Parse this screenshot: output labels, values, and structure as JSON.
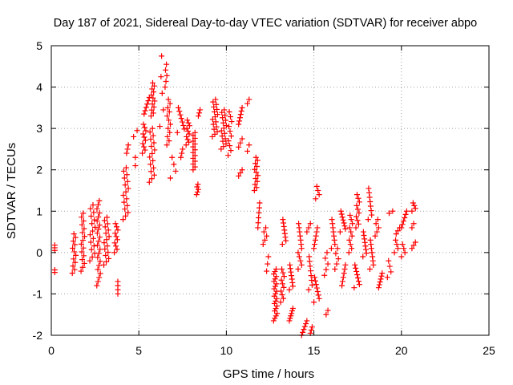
{
  "chart_data": {
    "type": "scatter",
    "title": "Day 187 of 2021, Sidereal Day-to-day VTEC variation (SDTVAR) for receiver abpo",
    "xlabel": "GPS time / hours",
    "ylabel": "SDTVAR / TECUs",
    "xlim": [
      0,
      25
    ],
    "ylim": [
      -2,
      5
    ],
    "xticks": [
      "0",
      "5",
      "10",
      "15",
      "20",
      "25"
    ],
    "yticks": [
      "-2",
      "-1",
      "0",
      "1",
      "2",
      "3",
      "4",
      "5"
    ],
    "grid": true,
    "marker": "+",
    "series_color": "#ff0000",
    "clusters": [
      {
        "x": 0.2,
        "x2": 0.2,
        "y1": 0.05,
        "y2": 0.18,
        "n": 3
      },
      {
        "x": 0.2,
        "x2": 0.2,
        "y1": -0.48,
        "y2": -0.42,
        "n": 2
      },
      {
        "x": 1.2,
        "x2": 1.4,
        "y1": -0.5,
        "y2": 0.45,
        "n": 12
      },
      {
        "x": 1.7,
        "x2": 1.9,
        "y1": -0.45,
        "y2": 0.95,
        "n": 16
      },
      {
        "x": 2.2,
        "x2": 2.5,
        "y1": -0.2,
        "y2": 1.15,
        "n": 16
      },
      {
        "x": 2.6,
        "x2": 2.8,
        "y1": -0.8,
        "y2": 1.25,
        "n": 22
      },
      {
        "x": 3.0,
        "x2": 3.3,
        "y1": -0.3,
        "y2": 0.85,
        "n": 16
      },
      {
        "x": 3.6,
        "x2": 3.8,
        "y1": 0.0,
        "y2": 0.7,
        "n": 10
      },
      {
        "x": 3.8,
        "x2": 3.8,
        "y1": -1.0,
        "y2": -0.7,
        "n": 4
      },
      {
        "x": 4.1,
        "x2": 4.4,
        "y1": 0.8,
        "y2": 2.05,
        "n": 16
      },
      {
        "x": 4.3,
        "x2": 4.4,
        "y1": 2.4,
        "y2": 2.6,
        "n": 3
      },
      {
        "x": 4.8,
        "x2": 4.8,
        "y1": 2.1,
        "y2": 2.3,
        "n": 2
      },
      {
        "x": 4.7,
        "x2": 4.9,
        "y1": 2.8,
        "y2": 2.95,
        "n": 2
      },
      {
        "x": 5.2,
        "x2": 5.4,
        "y1": 2.4,
        "y2": 3.1,
        "n": 10
      },
      {
        "x": 5.3,
        "x2": 5.6,
        "y1": 3.35,
        "y2": 3.75,
        "n": 6
      },
      {
        "x": 5.6,
        "x2": 5.9,
        "y1": 1.7,
        "y2": 3.0,
        "n": 16
      },
      {
        "x": 5.7,
        "x2": 5.9,
        "y1": 3.3,
        "y2": 4.1,
        "n": 12
      },
      {
        "x": 6.2,
        "x2": 6.4,
        "y1": 3.05,
        "y2": 4.25,
        "n": 4
      },
      {
        "x": 6.3,
        "x2": 6.3,
        "y1": 4.75,
        "y2": 4.75,
        "n": 1
      },
      {
        "x": 6.5,
        "x2": 6.6,
        "y1": 4.0,
        "y2": 4.55,
        "n": 5
      },
      {
        "x": 6.6,
        "x2": 6.8,
        "y1": 2.6,
        "y2": 3.7,
        "n": 12
      },
      {
        "x": 6.8,
        "x2": 7.1,
        "y1": 1.8,
        "y2": 2.3,
        "n": 4
      },
      {
        "x": 7.2,
        "x2": 7.6,
        "y1": 2.9,
        "y2": 3.5,
        "n": 8
      },
      {
        "x": 7.4,
        "x2": 7.5,
        "y1": 2.3,
        "y2": 2.5,
        "n": 3
      },
      {
        "x": 7.7,
        "x2": 7.9,
        "y1": 2.6,
        "y2": 3.2,
        "n": 10
      },
      {
        "x": 8.1,
        "x2": 8.3,
        "y1": 2.0,
        "y2": 2.9,
        "n": 14
      },
      {
        "x": 8.3,
        "x2": 8.4,
        "y1": 1.4,
        "y2": 1.65,
        "n": 5
      },
      {
        "x": 8.4,
        "x2": 8.5,
        "y1": 3.3,
        "y2": 3.45,
        "n": 3
      },
      {
        "x": 9.2,
        "x2": 9.5,
        "y1": 2.8,
        "y2": 3.7,
        "n": 16
      },
      {
        "x": 9.7,
        "x2": 10.0,
        "y1": 2.5,
        "y2": 3.45,
        "n": 16
      },
      {
        "x": 10.1,
        "x2": 10.3,
        "y1": 2.35,
        "y2": 3.4,
        "n": 10
      },
      {
        "x": 10.7,
        "x2": 10.9,
        "y1": 3.1,
        "y2": 3.5,
        "n": 6
      },
      {
        "x": 10.7,
        "x2": 10.9,
        "y1": 2.55,
        "y2": 2.75,
        "n": 3
      },
      {
        "x": 10.7,
        "x2": 10.9,
        "y1": 1.85,
        "y2": 2.0,
        "n": 3
      },
      {
        "x": 11.2,
        "x2": 11.3,
        "y1": 3.6,
        "y2": 3.7,
        "n": 2
      },
      {
        "x": 11.2,
        "x2": 11.3,
        "y1": 2.45,
        "y2": 2.6,
        "n": 2
      },
      {
        "x": 11.6,
        "x2": 11.8,
        "y1": 1.5,
        "y2": 2.3,
        "n": 12
      },
      {
        "x": 11.8,
        "x2": 11.9,
        "y1": 0.6,
        "y2": 1.2,
        "n": 6
      },
      {
        "x": 12.1,
        "x2": 12.3,
        "y1": 0.2,
        "y2": 0.6,
        "n": 5
      },
      {
        "x": 12.3,
        "x2": 12.4,
        "y1": -0.45,
        "y2": -0.1,
        "n": 3
      },
      {
        "x": 12.7,
        "x2": 12.9,
        "y1": -1.65,
        "y2": -0.4,
        "n": 22
      },
      {
        "x": 13.1,
        "x2": 13.3,
        "y1": -1.2,
        "y2": -0.4,
        "n": 10
      },
      {
        "x": 13.2,
        "x2": 13.4,
        "y1": 0.2,
        "y2": 0.8,
        "n": 8
      },
      {
        "x": 13.6,
        "x2": 13.8,
        "y1": -0.9,
        "y2": -0.3,
        "n": 8
      },
      {
        "x": 13.6,
        "x2": 13.8,
        "y1": -1.65,
        "y2": -1.35,
        "n": 6
      },
      {
        "x": 14.1,
        "x2": 14.3,
        "y1": 0.0,
        "y2": 0.7,
        "n": 8
      },
      {
        "x": 14.1,
        "x2": 14.3,
        "y1": -0.4,
        "y2": -0.1,
        "n": 4
      },
      {
        "x": 14.3,
        "x2": 14.6,
        "y1": -2.0,
        "y2": -1.65,
        "n": 6
      },
      {
        "x": 14.6,
        "x2": 14.8,
        "y1": 0.5,
        "y2": 0.7,
        "n": 3
      },
      {
        "x": 14.7,
        "x2": 14.9,
        "y1": -0.9,
        "y2": -0.1,
        "n": 8
      },
      {
        "x": 14.8,
        "x2": 14.9,
        "y1": -1.95,
        "y2": -1.8,
        "n": 3
      },
      {
        "x": 15.0,
        "x2": 15.3,
        "y1": -1.2,
        "y2": -0.6,
        "n": 8
      },
      {
        "x": 15.0,
        "x2": 15.2,
        "y1": 0.1,
        "y2": 0.6,
        "n": 6
      },
      {
        "x": 15.1,
        "x2": 15.3,
        "y1": 1.3,
        "y2": 1.6,
        "n": 4
      },
      {
        "x": 15.6,
        "x2": 15.8,
        "y1": -0.55,
        "y2": 0.0,
        "n": 5
      },
      {
        "x": 15.7,
        "x2": 15.8,
        "y1": -1.5,
        "y2": -1.4,
        "n": 2
      },
      {
        "x": 16.0,
        "x2": 16.2,
        "y1": 0.1,
        "y2": 0.8,
        "n": 8
      },
      {
        "x": 16.2,
        "x2": 16.4,
        "y1": -0.4,
        "y2": 0.1,
        "n": 5
      },
      {
        "x": 16.5,
        "x2": 16.8,
        "y1": 0.5,
        "y2": 1.0,
        "n": 8
      },
      {
        "x": 16.6,
        "x2": 16.8,
        "y1": -0.8,
        "y2": -0.3,
        "n": 6
      },
      {
        "x": 17.0,
        "x2": 17.2,
        "y1": 0.0,
        "y2": 0.9,
        "n": 10
      },
      {
        "x": 17.3,
        "x2": 17.6,
        "y1": -0.85,
        "y2": -0.3,
        "n": 8
      },
      {
        "x": 17.4,
        "x2": 17.6,
        "y1": 0.6,
        "y2": 1.4,
        "n": 10
      },
      {
        "x": 17.8,
        "x2": 18.0,
        "y1": -0.1,
        "y2": 0.5,
        "n": 8
      },
      {
        "x": 18.1,
        "x2": 18.3,
        "y1": 0.8,
        "y2": 1.55,
        "n": 8
      },
      {
        "x": 18.2,
        "x2": 18.4,
        "y1": -0.4,
        "y2": 0.3,
        "n": 8
      },
      {
        "x": 18.7,
        "x2": 18.9,
        "y1": -0.85,
        "y2": -0.5,
        "n": 6
      },
      {
        "x": 18.5,
        "x2": 18.7,
        "y1": 0.4,
        "y2": 0.8,
        "n": 5
      },
      {
        "x": 19.2,
        "x2": 19.4,
        "y1": -0.6,
        "y2": -0.2,
        "n": 4
      },
      {
        "x": 19.3,
        "x2": 19.5,
        "y1": 0.95,
        "y2": 1.0,
        "n": 2
      },
      {
        "x": 19.6,
        "x2": 19.8,
        "y1": 0.0,
        "y2": 0.3,
        "n": 4
      },
      {
        "x": 19.7,
        "x2": 19.9,
        "y1": 0.45,
        "y2": 0.6,
        "n": 3
      },
      {
        "x": 20.0,
        "x2": 20.3,
        "y1": 0.6,
        "y2": 1.0,
        "n": 6
      },
      {
        "x": 20.0,
        "x2": 20.2,
        "y1": -0.1,
        "y2": 0.2,
        "n": 4
      },
      {
        "x": 20.6,
        "x2": 20.8,
        "y1": 1.0,
        "y2": 1.2,
        "n": 4
      },
      {
        "x": 20.6,
        "x2": 20.8,
        "y1": 0.1,
        "y2": 0.25,
        "n": 3
      },
      {
        "x": 20.6,
        "x2": 20.7,
        "y1": 0.6,
        "y2": 0.7,
        "n": 2
      }
    ]
  }
}
